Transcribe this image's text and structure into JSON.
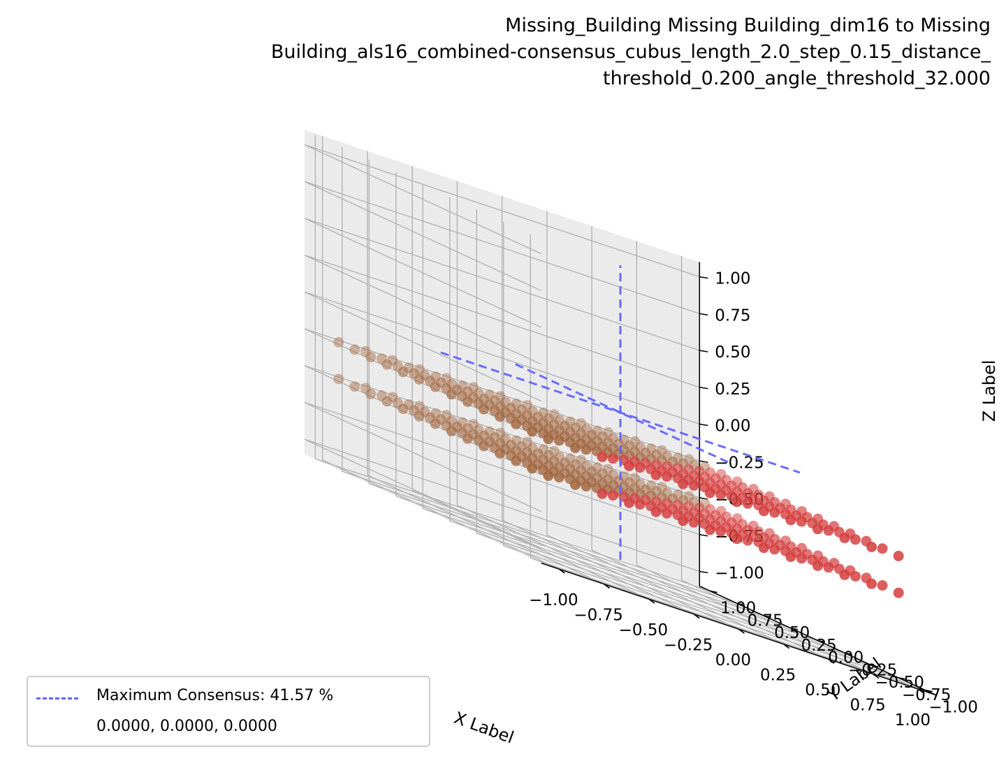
{
  "chart_data": {
    "type": "scatter",
    "title_lines": [
      "Missing_Building Missing Building_dim16 to Missing",
      "Building_als16_combined-consensus_cubus_length_2.0_step_0.15_distance_",
      "threshold_0.200_angle_threshold_32.000"
    ],
    "xlabel": "X Label",
    "ylabel": "Y Label",
    "zlabel": "Z Label",
    "xlim": [
      -1.0,
      1.0
    ],
    "ylim": [
      -1.0,
      1.0
    ],
    "zlim": [
      -1.0,
      1.0
    ],
    "x_ticks": [
      "−1.00",
      "−0.75",
      "−0.50",
      "−0.25",
      "0.00",
      "0.25",
      "0.50",
      "0.75",
      "1.00"
    ],
    "y_ticks": [
      "−1.00",
      "−0.75",
      "−0.50",
      "−0.25",
      "0.00",
      "0.25",
      "0.50",
      "0.75",
      "1.00"
    ],
    "z_ticks": [
      "−1.00",
      "−0.75",
      "−0.50",
      "−0.25",
      "0.00",
      "0.25",
      "0.50",
      "0.75",
      "1.00"
    ],
    "grid": true,
    "point_grid": {
      "x_start": -1.0,
      "step": 0.15,
      "count": 14,
      "z_levels": [
        -0.25,
        -0.5
      ]
    },
    "maximum_consensus_point": [
      0.0,
      0.0,
      0.0
    ],
    "colors": {
      "axis_line": "#6464ff",
      "point_high": "#d43c3c",
      "point_low": "#a0643c"
    },
    "legend": {
      "position": "lower-left",
      "line_label": "Maximum Consensus: 41.57 %",
      "coords_label": "0.0000, 0.0000, 0.0000"
    }
  }
}
